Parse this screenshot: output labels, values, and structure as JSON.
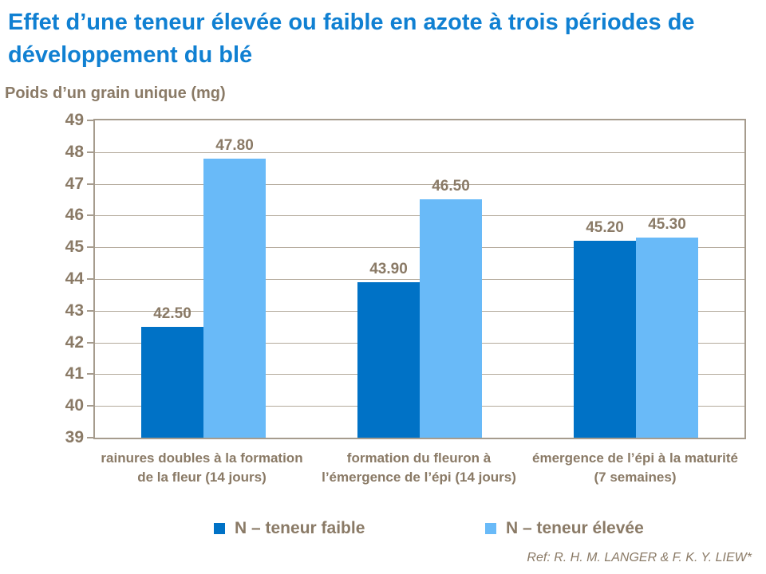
{
  "title": "Effet d’une teneur élevée ou faible en azote à trois périodes de développement du blé",
  "y_axis_title": "Poids d’un grain unique (mg)",
  "chart_data": {
    "type": "bar",
    "title": "Effet d’une teneur élevée ou faible en azote à trois périodes de développement du blé",
    "ylabel": "Poids d’un grain unique (mg)",
    "xlabel": "",
    "categories": [
      "rainures doubles à la formation de la fleur (14 jours)",
      "formation du fleuron à l’émergence de l’épi (14 jours)",
      "émergence de l’épi à la maturité (7 semaines)"
    ],
    "series": [
      {
        "name": "N – teneur faible",
        "color": "#0072c6",
        "values": [
          42.5,
          43.9,
          45.2
        ]
      },
      {
        "name": "N – teneur élevée",
        "color": "#69baf8",
        "values": [
          47.8,
          46.5,
          45.3
        ]
      }
    ],
    "ylim": [
      39,
      49
    ],
    "ytick_step": 1,
    "grid": true,
    "legend_position": "bottom"
  },
  "reference": "Ref: R. H. M. LANGER & F. K. Y. LIEW*",
  "colors": {
    "title_blue": "#1080d2",
    "text_brown": "#8a7a66",
    "axis_border": "#a69c8e",
    "gridline": "#b4aa9c",
    "series_low_n": "#0072c6",
    "series_high_n": "#69baf8"
  }
}
